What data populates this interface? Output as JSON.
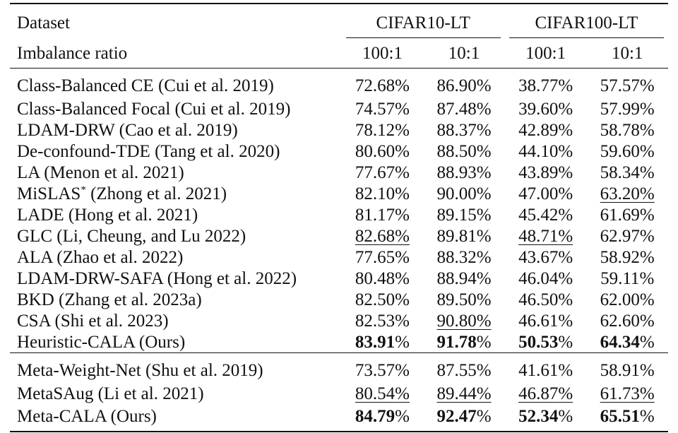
{
  "header": {
    "dataset_label": "Dataset",
    "ratio_label": "Imbalance ratio",
    "groups": [
      "CIFAR10-LT",
      "CIFAR100-LT"
    ],
    "ratios": [
      "100:1",
      "10:1",
      "100:1",
      "10:1"
    ]
  },
  "group1": [
    {
      "method": "Class-Balanced CE (Cui et al. 2019)",
      "cells": [
        {
          "v": "72.68",
          "b": false,
          "u": false
        },
        {
          "v": "86.90",
          "b": false,
          "u": false
        },
        {
          "v": "38.77",
          "b": false,
          "u": false
        },
        {
          "v": "57.57",
          "b": false,
          "u": false
        }
      ]
    },
    {
      "method": "Class-Balanced Focal (Cui et al. 2019)",
      "cells": [
        {
          "v": "74.57",
          "b": false,
          "u": false
        },
        {
          "v": "87.48",
          "b": false,
          "u": false
        },
        {
          "v": "39.60",
          "b": false,
          "u": false
        },
        {
          "v": "57.99",
          "b": false,
          "u": false
        }
      ]
    },
    {
      "method": "LDAM-DRW (Cao et al. 2019)",
      "cells": [
        {
          "v": "78.12",
          "b": false,
          "u": false
        },
        {
          "v": "88.37",
          "b": false,
          "u": false
        },
        {
          "v": "42.89",
          "b": false,
          "u": false
        },
        {
          "v": "58.78",
          "b": false,
          "u": false
        }
      ]
    },
    {
      "method": "De-confound-TDE (Tang et al. 2020)",
      "cells": [
        {
          "v": "80.60",
          "b": false,
          "u": false
        },
        {
          "v": "88.50",
          "b": false,
          "u": false
        },
        {
          "v": "44.10",
          "b": false,
          "u": false
        },
        {
          "v": "59.60",
          "b": false,
          "u": false
        }
      ]
    },
    {
      "method": "LA (Menon et al. 2021)",
      "cells": [
        {
          "v": "77.67",
          "b": false,
          "u": false
        },
        {
          "v": "88.93",
          "b": false,
          "u": false
        },
        {
          "v": "43.89",
          "b": false,
          "u": false
        },
        {
          "v": "58.34",
          "b": false,
          "u": false
        }
      ]
    },
    {
      "method": "MiSLAS",
      "sup": "*",
      "method_rest": " (Zhong et al. 2021)",
      "cells": [
        {
          "v": "82.10",
          "b": false,
          "u": false
        },
        {
          "v": "90.00",
          "b": false,
          "u": false
        },
        {
          "v": "47.00",
          "b": false,
          "u": false
        },
        {
          "v": "63.20",
          "b": false,
          "u": true
        }
      ]
    },
    {
      "method": "LADE (Hong et al. 2021)",
      "cells": [
        {
          "v": "81.17",
          "b": false,
          "u": false
        },
        {
          "v": "89.15",
          "b": false,
          "u": false
        },
        {
          "v": "45.42",
          "b": false,
          "u": false
        },
        {
          "v": "61.69",
          "b": false,
          "u": false
        }
      ]
    },
    {
      "method": "GLC (Li, Cheung, and Lu 2022)",
      "cells": [
        {
          "v": "82.68",
          "b": false,
          "u": true
        },
        {
          "v": "89.81",
          "b": false,
          "u": false
        },
        {
          "v": "48.71",
          "b": false,
          "u": true
        },
        {
          "v": "62.97",
          "b": false,
          "u": false
        }
      ]
    },
    {
      "method": "ALA (Zhao et al. 2022)",
      "cells": [
        {
          "v": "77.65",
          "b": false,
          "u": false
        },
        {
          "v": "88.32",
          "b": false,
          "u": false
        },
        {
          "v": "43.67",
          "b": false,
          "u": false
        },
        {
          "v": "58.92",
          "b": false,
          "u": false
        }
      ]
    },
    {
      "method": "LDAM-DRW-SAFA (Hong et al. 2022)",
      "cells": [
        {
          "v": "80.48",
          "b": false,
          "u": false
        },
        {
          "v": "88.94",
          "b": false,
          "u": false
        },
        {
          "v": "46.04",
          "b": false,
          "u": false
        },
        {
          "v": "59.11",
          "b": false,
          "u": false
        }
      ]
    },
    {
      "method": "BKD (Zhang et al. 2023a)",
      "cells": [
        {
          "v": "82.50",
          "b": false,
          "u": false
        },
        {
          "v": "89.50",
          "b": false,
          "u": false
        },
        {
          "v": "46.50",
          "b": false,
          "u": false
        },
        {
          "v": "62.00",
          "b": false,
          "u": false
        }
      ]
    },
    {
      "method": "CSA (Shi et al. 2023)",
      "cells": [
        {
          "v": "82.53",
          "b": false,
          "u": false
        },
        {
          "v": "90.80",
          "b": false,
          "u": true
        },
        {
          "v": "46.61",
          "b": false,
          "u": false
        },
        {
          "v": "62.60",
          "b": false,
          "u": false
        }
      ]
    },
    {
      "method": "Heuristic-CALA (Ours)",
      "cells": [
        {
          "v": "83.91",
          "b": true,
          "u": false
        },
        {
          "v": "91.78",
          "b": true,
          "u": false
        },
        {
          "v": "50.53",
          "b": true,
          "u": false
        },
        {
          "v": "64.34",
          "b": true,
          "u": false
        }
      ]
    }
  ],
  "group2": [
    {
      "method": "Meta-Weight-Net (Shu et al. 2019)",
      "cells": [
        {
          "v": "73.57",
          "b": false,
          "u": false
        },
        {
          "v": "87.55",
          "b": false,
          "u": false
        },
        {
          "v": "41.61",
          "b": false,
          "u": false
        },
        {
          "v": "58.91",
          "b": false,
          "u": false
        }
      ]
    },
    {
      "method": "MetaSAug (Li et al. 2021)",
      "cells": [
        {
          "v": "80.54",
          "b": false,
          "u": true
        },
        {
          "v": "89.44",
          "b": false,
          "u": true
        },
        {
          "v": "46.87",
          "b": false,
          "u": true
        },
        {
          "v": "61.73",
          "b": false,
          "u": true
        }
      ]
    },
    {
      "method": "Meta-CALA (Ours)",
      "cells": [
        {
          "v": "84.79",
          "b": true,
          "u": false
        },
        {
          "v": "92.47",
          "b": true,
          "u": false
        },
        {
          "v": "52.34",
          "b": true,
          "u": false
        },
        {
          "v": "65.51",
          "b": true,
          "u": false
        }
      ]
    }
  ],
  "percent_sign": "%"
}
